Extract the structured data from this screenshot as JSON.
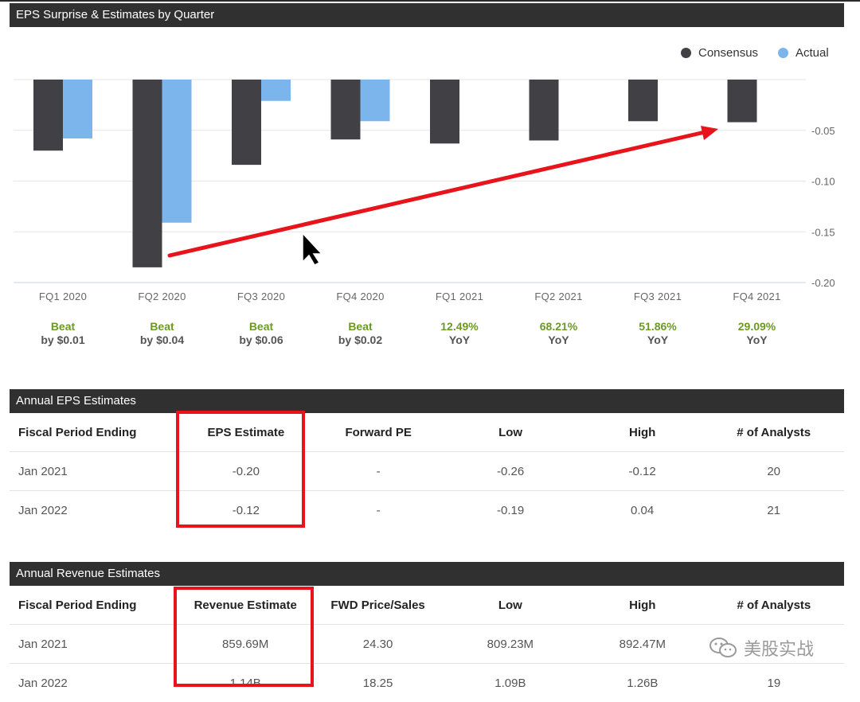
{
  "eps_chart": {
    "title": "EPS Surprise & Estimates by Quarter",
    "legend": [
      {
        "name": "Consensus",
        "color": "#404045"
      },
      {
        "name": "Actual",
        "color": "#7cb5ec"
      }
    ],
    "y_ticks": [
      "-0.05",
      "-0.10",
      "-0.15",
      "-0.20"
    ],
    "surprises": [
      {
        "top": "Beat",
        "bottom": "by $0.01"
      },
      {
        "top": "Beat",
        "bottom": "by $0.04"
      },
      {
        "top": "Beat",
        "bottom": "by $0.06"
      },
      {
        "top": "Beat",
        "bottom": "by $0.02"
      },
      {
        "top": "12.49%",
        "bottom": "YoY"
      },
      {
        "top": "68.21%",
        "bottom": "YoY"
      },
      {
        "top": "51.86%",
        "bottom": "YoY"
      },
      {
        "top": "29.09%",
        "bottom": "YoY"
      }
    ]
  },
  "chart_data": {
    "type": "bar",
    "title": "EPS Surprise & Estimates by Quarter",
    "categories": [
      "FQ1 2020",
      "FQ2 2020",
      "FQ3 2020",
      "FQ4 2020",
      "FQ1 2021",
      "FQ2 2021",
      "FQ3 2021",
      "FQ4 2021"
    ],
    "series": [
      {
        "name": "Consensus",
        "color": "#404045",
        "values": [
          -0.07,
          -0.185,
          -0.084,
          -0.059,
          -0.063,
          -0.06,
          -0.041,
          -0.042
        ]
      },
      {
        "name": "Actual",
        "color": "#7cb5ec",
        "values": [
          -0.058,
          -0.141,
          -0.021,
          -0.041,
          null,
          null,
          null,
          null
        ]
      }
    ],
    "ylim": [
      -0.2,
      0
    ],
    "y_ticks": [
      -0.05,
      -0.1,
      -0.15,
      -0.2
    ],
    "legend_position": "top-right",
    "grid": true
  },
  "annual_eps": {
    "title": "Annual EPS Estimates",
    "headers": [
      "Fiscal Period Ending",
      "EPS Estimate",
      "Forward PE",
      "Low",
      "High",
      "# of Analysts"
    ],
    "rows": [
      [
        "Jan 2021",
        "-0.20",
        "-",
        "-0.26",
        "-0.12",
        "20"
      ],
      [
        "Jan 2022",
        "-0.12",
        "-",
        "-0.19",
        "0.04",
        "21"
      ]
    ]
  },
  "annual_revenue": {
    "title": "Annual Revenue Estimates",
    "headers": [
      "Fiscal Period Ending",
      "Revenue Estimate",
      "FWD Price/Sales",
      "Low",
      "High",
      "# of Analysts"
    ],
    "rows": [
      [
        "Jan 2021",
        "859.69M",
        "24.30",
        "809.23M",
        "892.47M",
        ""
      ],
      [
        "Jan 2022",
        "1.14B",
        "18.25",
        "1.09B",
        "1.26B",
        "19"
      ]
    ]
  },
  "watermark": {
    "text": "美股实战",
    "icon": "wechat-icon"
  },
  "annotation_colors": {
    "highlight": "#e8141c",
    "arrow": "#e8141c"
  }
}
